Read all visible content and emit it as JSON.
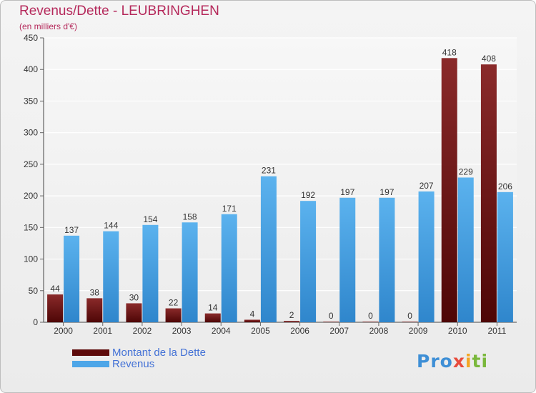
{
  "title": "Revenus/Dette - LEUBRINGHEN",
  "subtitle": "(en milliers d'€)",
  "chart_data": {
    "type": "bar",
    "categories": [
      "2000",
      "2001",
      "2002",
      "2003",
      "2004",
      "2005",
      "2006",
      "2007",
      "2008",
      "2009",
      "2010",
      "2011"
    ],
    "series": [
      {
        "name": "Montant de la Dette",
        "values": [
          44,
          38,
          30,
          22,
          14,
          4,
          2,
          0,
          0,
          0,
          418,
          408
        ],
        "color": "#6b0f0f"
      },
      {
        "name": "Revenus",
        "values": [
          137,
          144,
          154,
          158,
          171,
          231,
          192,
          197,
          197,
          207,
          229,
          206
        ],
        "color": "#4da6e8"
      }
    ],
    "ylim": [
      0,
      450
    ],
    "yticks": [
      0,
      50,
      100,
      150,
      200,
      250,
      300,
      350,
      400,
      450
    ],
    "grid": true,
    "legend_position": "bottom-left"
  },
  "legend": {
    "debt_label": "Montant de la Dette",
    "revenue_label": "Revenus"
  },
  "logo_text": "Proxiti"
}
